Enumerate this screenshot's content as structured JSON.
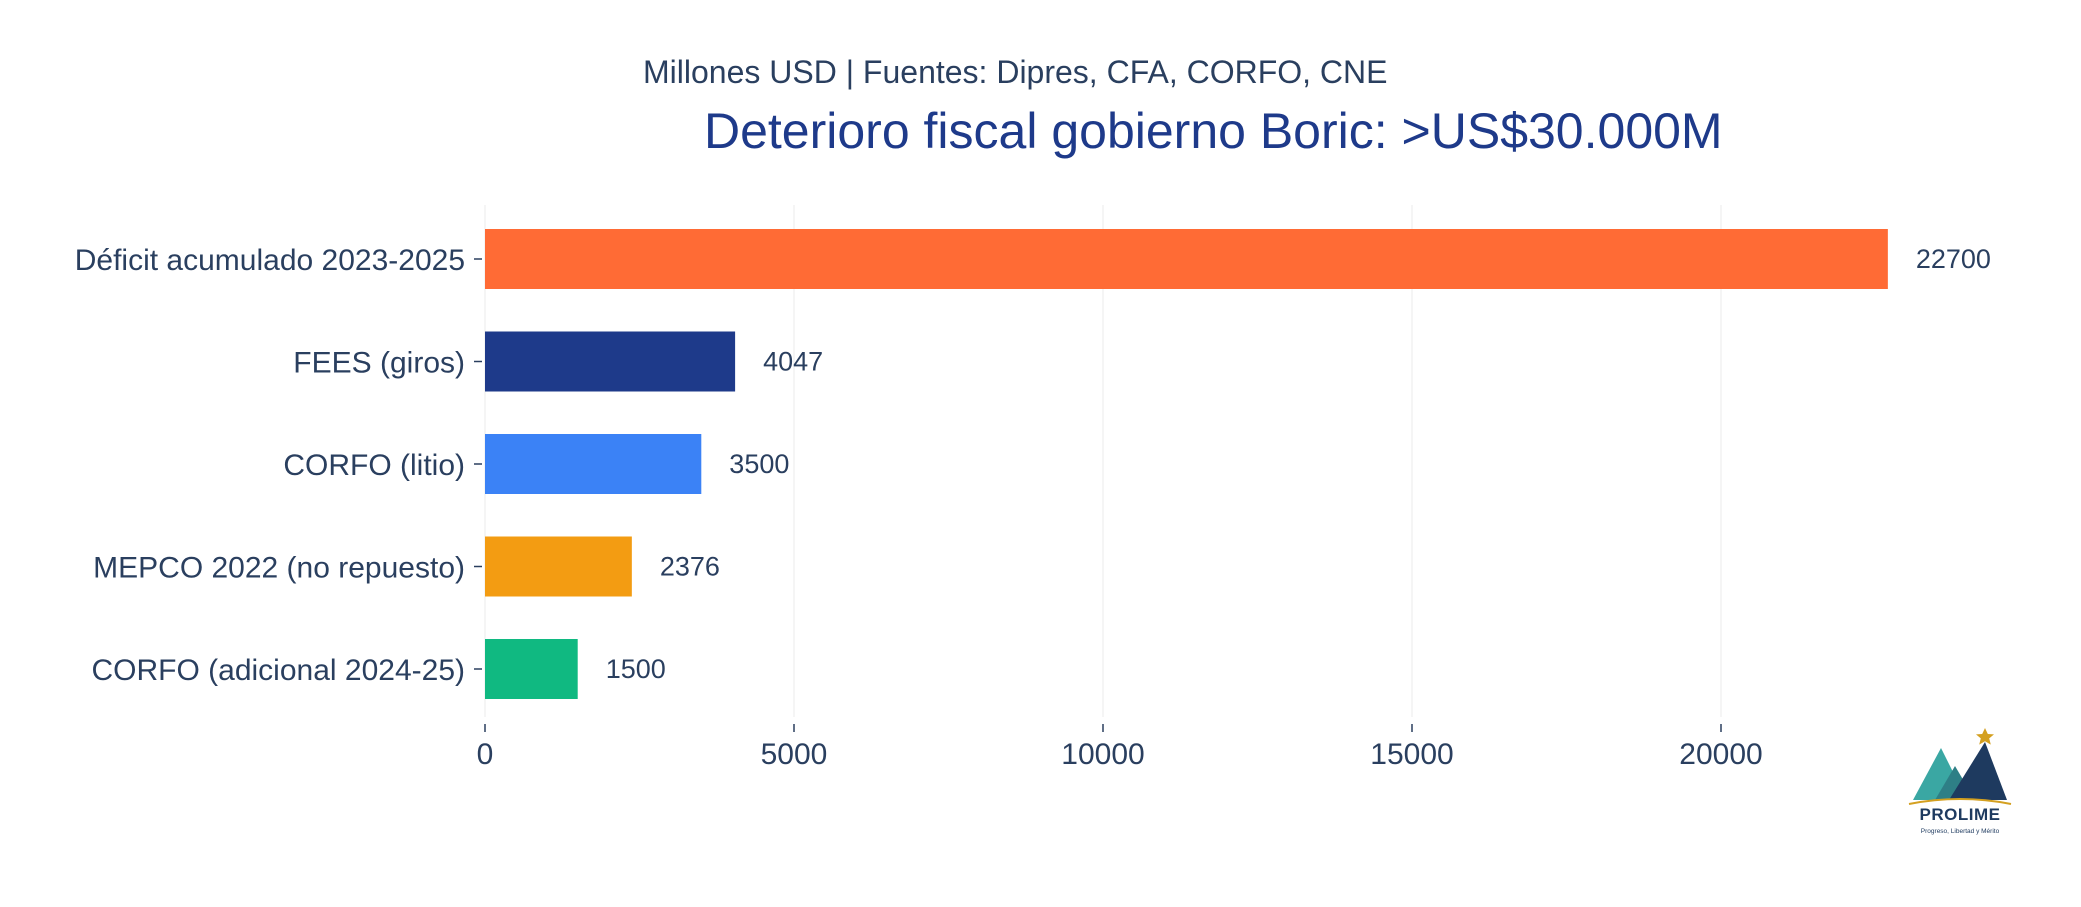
{
  "chart_data": {
    "type": "bar",
    "orientation": "horizontal",
    "title": "Deterioro fiscal gobierno Boric: >US$30.000M",
    "subtitle": "Millones USD | Fuentes: Dipres, CFA, CORFO, CNE",
    "categories": [
      "Déficit acumulado 2023-2025",
      "FEES (giros)",
      "CORFO (litio)",
      "MEPCO 2022 (no repuesto)",
      "CORFO (adicional 2024-25)"
    ],
    "values": [
      22700,
      4047,
      3500,
      2376,
      1500
    ],
    "value_labels": [
      "22700",
      "4047",
      "3500",
      "2376",
      "1500"
    ],
    "colors": [
      "#ff6b35",
      "#1e3a8a",
      "#3b82f6",
      "#f39c12",
      "#10b981"
    ],
    "x_ticks": [
      "0",
      "5000",
      "10000",
      "15000",
      "20000"
    ],
    "x_tick_values": [
      0,
      5000,
      10000,
      15000,
      20000
    ],
    "xlim": [
      0,
      23500
    ],
    "xlabel": "",
    "ylabel": "",
    "grid": "vertical",
    "legend": "none",
    "text_color": "#2a3f5f",
    "grid_color": "#ebebeb"
  },
  "logo": {
    "name": "PROLIME",
    "tagline": "Progreso, Libertad y Mérito",
    "colors": [
      "#3aa7a3",
      "#1e3a5f",
      "#d4a020"
    ]
  }
}
